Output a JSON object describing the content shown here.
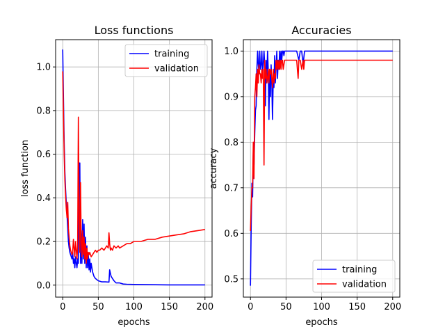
{
  "chart_data": [
    {
      "type": "line",
      "title": "Loss functions",
      "xlabel": "epochs",
      "ylabel": "loss function",
      "xlim": [
        -10,
        210
      ],
      "ylim": [
        -0.055,
        1.125
      ],
      "grid": true,
      "legend_position": "upper right",
      "x_ticks": [
        0,
        50,
        100,
        150,
        200
      ],
      "x_tick_labels": [
        "0",
        "50",
        "100",
        "150",
        "200"
      ],
      "y_ticks": [
        0.0,
        0.2,
        0.4,
        0.6,
        0.8,
        1.0
      ],
      "y_tick_labels": [
        "0.0",
        "0.2",
        "0.4",
        "0.6",
        "0.8",
        "1.0"
      ],
      "series": [
        {
          "name": "training",
          "color": "#0000ff",
          "x": [
            0,
            1,
            2,
            3,
            4,
            5,
            6,
            7,
            8,
            9,
            10,
            11,
            12,
            13,
            14,
            15,
            16,
            17,
            18,
            19,
            20,
            21,
            22,
            23,
            24,
            25,
            26,
            27,
            28,
            29,
            30,
            31,
            32,
            33,
            34,
            35,
            36,
            37,
            38,
            39,
            40,
            42,
            44,
            46,
            48,
            50,
            52,
            55,
            60,
            65,
            66,
            68,
            70,
            72,
            75,
            80,
            85,
            90,
            100,
            120,
            150,
            200
          ],
          "y": [
            1.08,
            0.85,
            0.65,
            0.52,
            0.44,
            0.38,
            0.32,
            0.26,
            0.2,
            0.17,
            0.15,
            0.14,
            0.13,
            0.12,
            0.15,
            0.1,
            0.12,
            0.08,
            0.13,
            0.1,
            0.08,
            0.12,
            0.1,
            0.52,
            0.56,
            0.1,
            0.25,
            0.1,
            0.3,
            0.12,
            0.28,
            0.1,
            0.22,
            0.08,
            0.18,
            0.08,
            0.14,
            0.07,
            0.12,
            0.06,
            0.1,
            0.06,
            0.04,
            0.03,
            0.025,
            0.02,
            0.018,
            0.015,
            0.015,
            0.014,
            0.07,
            0.04,
            0.03,
            0.02,
            0.01,
            0.01,
            0.005,
            0.004,
            0.003,
            0.002,
            0.001,
            0.001
          ]
        },
        {
          "name": "validation",
          "color": "#ff0000",
          "x": [
            0,
            1,
            2,
            3,
            4,
            5,
            6,
            7,
            8,
            9,
            10,
            11,
            12,
            13,
            14,
            15,
            16,
            17,
            18,
            19,
            20,
            21,
            22,
            23,
            24,
            25,
            26,
            27,
            28,
            29,
            30,
            31,
            32,
            33,
            34,
            35,
            36,
            37,
            38,
            40,
            42,
            44,
            46,
            48,
            50,
            52,
            55,
            58,
            60,
            62,
            64,
            65,
            66,
            67,
            68,
            70,
            72,
            75,
            78,
            80,
            85,
            90,
            95,
            100,
            110,
            120,
            130,
            140,
            150,
            160,
            170,
            180,
            190,
            200
          ],
          "y": [
            0.98,
            0.78,
            0.6,
            0.48,
            0.41,
            0.35,
            0.31,
            0.38,
            0.26,
            0.22,
            0.18,
            0.16,
            0.15,
            0.14,
            0.15,
            0.21,
            0.17,
            0.13,
            0.2,
            0.16,
            0.12,
            0.18,
            0.77,
            0.3,
            0.15,
            0.47,
            0.2,
            0.13,
            0.25,
            0.14,
            0.22,
            0.12,
            0.19,
            0.1,
            0.17,
            0.12,
            0.15,
            0.14,
            0.15,
            0.13,
            0.14,
            0.15,
            0.16,
            0.15,
            0.16,
            0.16,
            0.17,
            0.16,
            0.17,
            0.18,
            0.17,
            0.24,
            0.19,
            0.16,
            0.17,
            0.16,
            0.18,
            0.17,
            0.18,
            0.17,
            0.18,
            0.19,
            0.19,
            0.2,
            0.2,
            0.21,
            0.21,
            0.22,
            0.225,
            0.23,
            0.235,
            0.245,
            0.25,
            0.255
          ]
        }
      ]
    },
    {
      "type": "line",
      "title": "Accuracies",
      "xlabel": "epochs",
      "ylabel": "accuracy",
      "xlim": [
        -10,
        210
      ],
      "ylim": [
        0.46,
        1.025
      ],
      "grid": true,
      "legend_position": "lower right",
      "x_ticks": [
        0,
        50,
        100,
        150,
        200
      ],
      "x_tick_labels": [
        "0",
        "50",
        "100",
        "150",
        "200"
      ],
      "y_ticks": [
        0.5,
        0.6,
        0.7,
        0.8,
        0.9,
        1.0
      ],
      "y_tick_labels": [
        "0.5",
        "0.6",
        "0.7",
        "0.8",
        "0.9",
        "1.0"
      ],
      "series": [
        {
          "name": "training",
          "color": "#0000ff",
          "x": [
            0,
            1,
            2,
            3,
            4,
            5,
            6,
            7,
            8,
            9,
            10,
            11,
            12,
            13,
            14,
            15,
            16,
            17,
            18,
            19,
            20,
            21,
            22,
            23,
            24,
            25,
            26,
            27,
            28,
            29,
            30,
            31,
            32,
            33,
            34,
            35,
            36,
            37,
            38,
            39,
            40,
            41,
            42,
            43,
            44,
            45,
            46,
            47,
            48,
            50,
            55,
            60,
            65,
            68,
            70,
            72,
            74,
            76,
            80,
            100,
            150,
            200
          ],
          "y": [
            0.485,
            0.62,
            0.71,
            0.68,
            0.78,
            0.75,
            0.82,
            0.87,
            0.88,
            0.96,
            1.0,
            0.97,
            0.95,
            1.0,
            0.96,
            0.97,
            1.0,
            0.95,
            0.97,
            1.0,
            0.97,
            0.88,
            0.98,
            0.94,
            1.0,
            0.96,
            0.85,
            0.96,
            0.9,
            0.97,
            0.93,
            0.85,
            0.94,
            0.92,
            0.99,
            0.93,
            0.96,
            1.0,
            0.94,
            0.98,
            0.96,
            1.0,
            0.97,
            1.0,
            0.98,
            1.0,
            1.0,
            0.99,
            1.0,
            1.0,
            1.0,
            1.0,
            1.0,
            0.98,
            1.0,
            1.0,
            0.97,
            1.0,
            1.0,
            1.0,
            1.0,
            1.0
          ]
        },
        {
          "name": "validation",
          "color": "#ff0000",
          "x": [
            0,
            1,
            2,
            3,
            4,
            5,
            6,
            7,
            8,
            9,
            10,
            11,
            12,
            13,
            14,
            15,
            16,
            17,
            18,
            19,
            20,
            21,
            22,
            23,
            24,
            25,
            26,
            27,
            28,
            29,
            30,
            31,
            32,
            33,
            34,
            35,
            36,
            37,
            38,
            39,
            40,
            41,
            42,
            43,
            44,
            45,
            46,
            48,
            50,
            55,
            60,
            65,
            66,
            67,
            68,
            70,
            72,
            74,
            75,
            76,
            80,
            100,
            150,
            200
          ],
          "y": [
            0.605,
            0.66,
            0.7,
            0.7,
            0.8,
            0.72,
            0.9,
            0.92,
            0.95,
            0.9,
            0.96,
            0.93,
            0.97,
            0.95,
            0.95,
            0.93,
            0.96,
            0.94,
            0.96,
            0.75,
            0.98,
            0.94,
            0.96,
            0.93,
            0.94,
            0.96,
            0.93,
            0.96,
            0.95,
            0.96,
            0.94,
            0.92,
            0.96,
            0.93,
            0.95,
            0.94,
            0.98,
            0.96,
            0.98,
            0.96,
            0.98,
            0.96,
            0.98,
            0.96,
            0.98,
            0.98,
            0.96,
            0.98,
            0.98,
            0.98,
            0.98,
            0.98,
            0.96,
            0.94,
            0.98,
            0.98,
            0.96,
            0.98,
            0.96,
            0.98,
            0.98,
            0.98,
            0.98,
            0.98
          ]
        }
      ]
    }
  ]
}
